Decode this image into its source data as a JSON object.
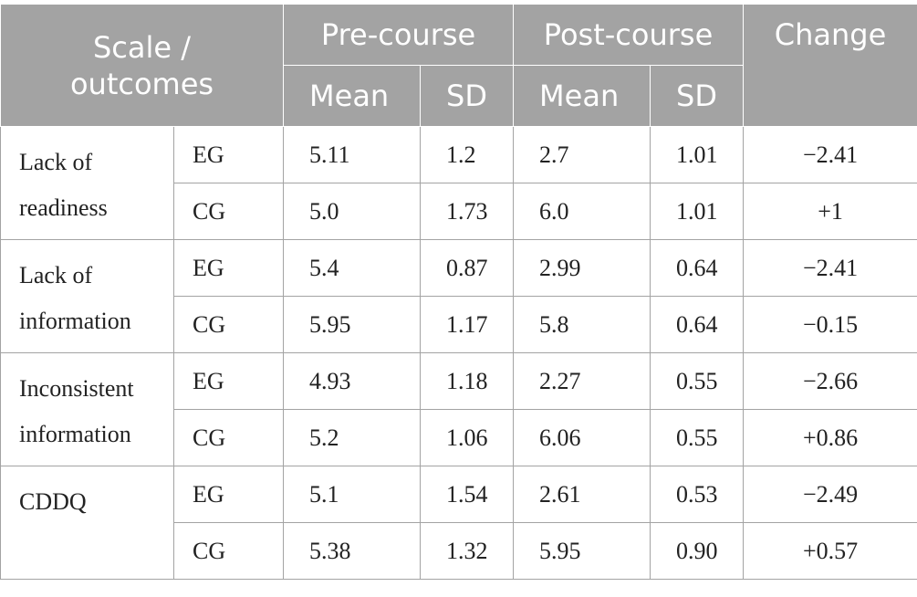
{
  "header": {
    "scale_outcomes": "Scale / outcomes",
    "pre_course": "Pre-course",
    "post_course": "Post-course",
    "change": "Change",
    "mean": "Mean",
    "sd": "SD"
  },
  "rows": [
    {
      "scale": "Lack of readiness",
      "groups": [
        {
          "group": "EG",
          "pre_mean": "5.11",
          "pre_sd": "1.2",
          "post_mean": "2.7",
          "post_sd": "1.01",
          "change": "−2.41"
        },
        {
          "group": "CG",
          "pre_mean": "5.0",
          "pre_sd": "1.73",
          "post_mean": "6.0",
          "post_sd": "1.01",
          "change": "+1"
        }
      ]
    },
    {
      "scale": "Lack of information",
      "groups": [
        {
          "group": "EG",
          "pre_mean": "5.4",
          "pre_sd": "0.87",
          "post_mean": "2.99",
          "post_sd": "0.64",
          "change": "−2.41"
        },
        {
          "group": "CG",
          "pre_mean": "5.95",
          "pre_sd": "1.17",
          "post_mean": "5.8",
          "post_sd": "0.64",
          "change": "−0.15"
        }
      ]
    },
    {
      "scale": "Inconsistent information",
      "groups": [
        {
          "group": "EG",
          "pre_mean": "4.93",
          "pre_sd": "1.18",
          "post_mean": "2.27",
          "post_sd": "0.55",
          "change": "−2.66"
        },
        {
          "group": "CG",
          "pre_mean": "5.2",
          "pre_sd": "1.06",
          "post_mean": "6.06",
          "post_sd": "0.55",
          "change": "+0.86"
        }
      ]
    },
    {
      "scale": "CDDQ",
      "groups": [
        {
          "group": "EG",
          "pre_mean": "5.1",
          "pre_sd": "1.54",
          "post_mean": "2.61",
          "post_sd": "0.53",
          "change": "−2.49"
        },
        {
          "group": "CG",
          "pre_mean": "5.38",
          "pre_sd": "1.32",
          "post_mean": "5.95",
          "post_sd": "0.90",
          "change": "+0.57"
        }
      ]
    }
  ]
}
